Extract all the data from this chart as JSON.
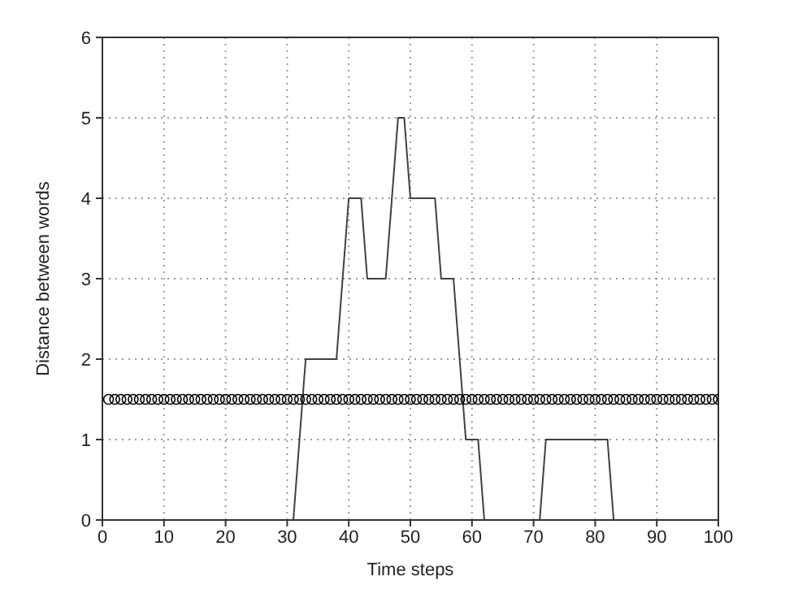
{
  "chart_data": {
    "type": "line",
    "xlabel": "Time steps",
    "ylabel": "Distance between words",
    "xlim": [
      0,
      100
    ],
    "ylim": [
      0,
      6
    ],
    "xticks": [
      0,
      10,
      20,
      30,
      40,
      50,
      60,
      70,
      80,
      90,
      100
    ],
    "yticks": [
      0,
      1,
      2,
      3,
      4,
      5,
      6
    ],
    "grid": true,
    "line_style": "solid",
    "series": [
      {
        "color": "#404040",
        "marker": "none",
        "x": [
          0,
          31,
          33,
          38,
          40,
          42,
          43,
          46,
          48,
          49,
          50,
          54,
          55,
          57,
          59,
          61,
          62,
          71,
          72,
          82,
          83,
          100
        ],
        "values": [
          0,
          0,
          2,
          2,
          4,
          4,
          3,
          3,
          5,
          5,
          4,
          4,
          3,
          3,
          1,
          1,
          0,
          0,
          1,
          1,
          0,
          0
        ]
      },
      {
        "type": "scatter",
        "color": "#000000",
        "marker": "circle",
        "x": [
          1,
          2,
          3,
          4,
          5,
          6,
          7,
          8,
          9,
          10,
          11,
          12,
          13,
          14,
          15,
          16,
          17,
          18,
          19,
          20,
          21,
          22,
          23,
          24,
          25,
          26,
          27,
          28,
          29,
          30,
          31,
          32,
          33,
          34,
          35,
          36,
          37,
          38,
          39,
          40,
          41,
          42,
          43,
          44,
          45,
          46,
          47,
          48,
          49,
          50,
          51,
          52,
          53,
          54,
          55,
          56,
          57,
          58,
          59,
          60,
          61,
          62,
          63,
          64,
          65,
          66,
          67,
          68,
          69,
          70,
          71,
          72,
          73,
          74,
          75,
          76,
          77,
          78,
          79,
          80,
          81,
          82,
          83,
          84,
          85,
          86,
          87,
          88,
          89,
          90,
          91,
          92,
          93,
          94,
          95,
          96,
          97,
          98,
          99,
          100
        ],
        "values": [
          1.5,
          1.5,
          1.5,
          1.5,
          1.5,
          1.5,
          1.5,
          1.5,
          1.5,
          1.5,
          1.5,
          1.5,
          1.5,
          1.5,
          1.5,
          1.5,
          1.5,
          1.5,
          1.5,
          1.5,
          1.5,
          1.5,
          1.5,
          1.5,
          1.5,
          1.5,
          1.5,
          1.5,
          1.5,
          1.5,
          1.5,
          1.5,
          1.5,
          1.5,
          1.5,
          1.5,
          1.5,
          1.5,
          1.5,
          1.5,
          1.5,
          1.5,
          1.5,
          1.5,
          1.5,
          1.5,
          1.5,
          1.5,
          1.5,
          1.5,
          1.5,
          1.5,
          1.5,
          1.5,
          1.5,
          1.5,
          1.5,
          1.5,
          1.5,
          1.5,
          1.5,
          1.5,
          1.5,
          1.5,
          1.5,
          1.5,
          1.5,
          1.5,
          1.5,
          1.5,
          1.5,
          1.5,
          1.5,
          1.5,
          1.5,
          1.5,
          1.5,
          1.5,
          1.5,
          1.5,
          1.5,
          1.5,
          1.5,
          1.5,
          1.5,
          1.5,
          1.5,
          1.5,
          1.5,
          1.5,
          1.5,
          1.5,
          1.5,
          1.5,
          1.5,
          1.5,
          1.5,
          1.5,
          1.5,
          1.5
        ]
      }
    ]
  }
}
